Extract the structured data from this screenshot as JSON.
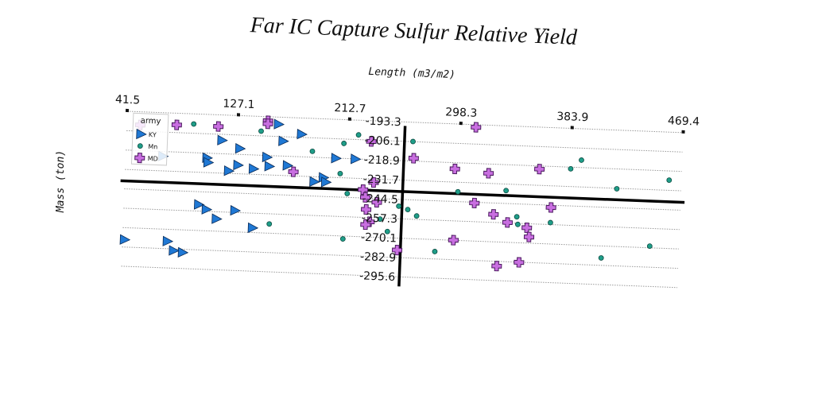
{
  "chart_data": {
    "type": "scatter",
    "title": "Far IC Capture Sulfur Relative Yield",
    "xlabel": "Length (m3/m2)",
    "ylabel": "Mass (ton)",
    "x_ticks": [
      "41.5",
      "127.1",
      "212.7",
      "298.3",
      "383.9",
      "469.4"
    ],
    "y_ticks": [
      "-193.3",
      "-206.1",
      "-218.9",
      "-231.7",
      "-244.5",
      "-257.3",
      "-270.1",
      "-282.9",
      "-295.6"
    ],
    "xlim": [
      41.5,
      469.4
    ],
    "ylim": [
      -295.6,
      -193.3
    ],
    "grid": "horizontal",
    "legend": {
      "title": "army",
      "position": "top-left"
    },
    "series": [
      {
        "name": "KY",
        "marker": "triangle-right",
        "color": "#1f78d4",
        "points": [
          [
            158,
            -198
          ],
          [
            176,
            -204
          ],
          [
            115,
            -210
          ],
          [
            162,
            -209
          ],
          [
            129,
            -215
          ],
          [
            70,
            -222
          ],
          [
            150,
            -220
          ],
          [
            203,
            -219
          ],
          [
            218,
            -219
          ],
          [
            104,
            -222
          ],
          [
            105,
            -225
          ],
          [
            128,
            -226
          ],
          [
            140,
            -228
          ],
          [
            152,
            -226
          ],
          [
            121,
            -230
          ],
          [
            194,
            -232
          ],
          [
            196,
            -235
          ],
          [
            99,
            -253
          ],
          [
            105,
            -256
          ],
          [
            113,
            -262
          ],
          [
            127,
            -256
          ],
          [
            141,
            -267
          ],
          [
            43,
            -278
          ],
          [
            76,
            -278
          ],
          [
            81,
            -284
          ],
          [
            88,
            -285
          ],
          [
            166,
            -225
          ],
          [
            187,
            -235
          ]
        ]
      },
      {
        "name": "Mn",
        "marker": "circle",
        "color": "#1f9e89",
        "points": [
          [
            93,
            -200
          ],
          [
            145,
            -203
          ],
          [
            185,
            -215
          ],
          [
            209,
            -209
          ],
          [
            220,
            -203
          ],
          [
            262,
            -206
          ],
          [
            207,
            -229
          ],
          [
            213,
            -242
          ],
          [
            298,
            -238
          ],
          [
            335,
            -236
          ],
          [
            344,
            -253
          ],
          [
            384,
            -220
          ],
          [
            392,
            -214
          ],
          [
            253,
            -249
          ],
          [
            260,
            -251
          ],
          [
            267,
            -255
          ],
          [
            239,
            -258
          ],
          [
            345,
            -258
          ],
          [
            370,
            -256
          ],
          [
            420,
            -232
          ],
          [
            460,
            -225
          ],
          [
            245,
            -266
          ],
          [
            211,
            -272
          ],
          [
            282,
            -278
          ],
          [
            447,
            -269
          ],
          [
            410,
            -278
          ],
          [
            154,
            -264
          ]
        ]
      },
      {
        "name": "MD",
        "marker": "plus",
        "color": "#c86ee0",
        "points": [
          [
            52,
            -202
          ],
          [
            80,
            -201
          ],
          [
            112,
            -201
          ],
          [
            150,
            -196
          ],
          [
            150,
            -198
          ],
          [
            230,
            -207
          ],
          [
            310,
            -195
          ],
          [
            263,
            -217
          ],
          [
            295,
            -223
          ],
          [
            360,
            -221
          ],
          [
            321,
            -225
          ],
          [
            171,
            -229
          ],
          [
            233,
            -234
          ],
          [
            225,
            -239
          ],
          [
            227,
            -244
          ],
          [
            236,
            -247
          ],
          [
            228,
            -252
          ],
          [
            231,
            -260
          ],
          [
            228,
            -262
          ],
          [
            311,
            -245
          ],
          [
            326,
            -252
          ],
          [
            337,
            -257
          ],
          [
            370,
            -246
          ],
          [
            352,
            -260
          ],
          [
            354,
            -266
          ],
          [
            296,
            -270
          ],
          [
            253,
            -278
          ],
          [
            347,
            -283
          ],
          [
            330,
            -286
          ]
        ]
      }
    ]
  }
}
